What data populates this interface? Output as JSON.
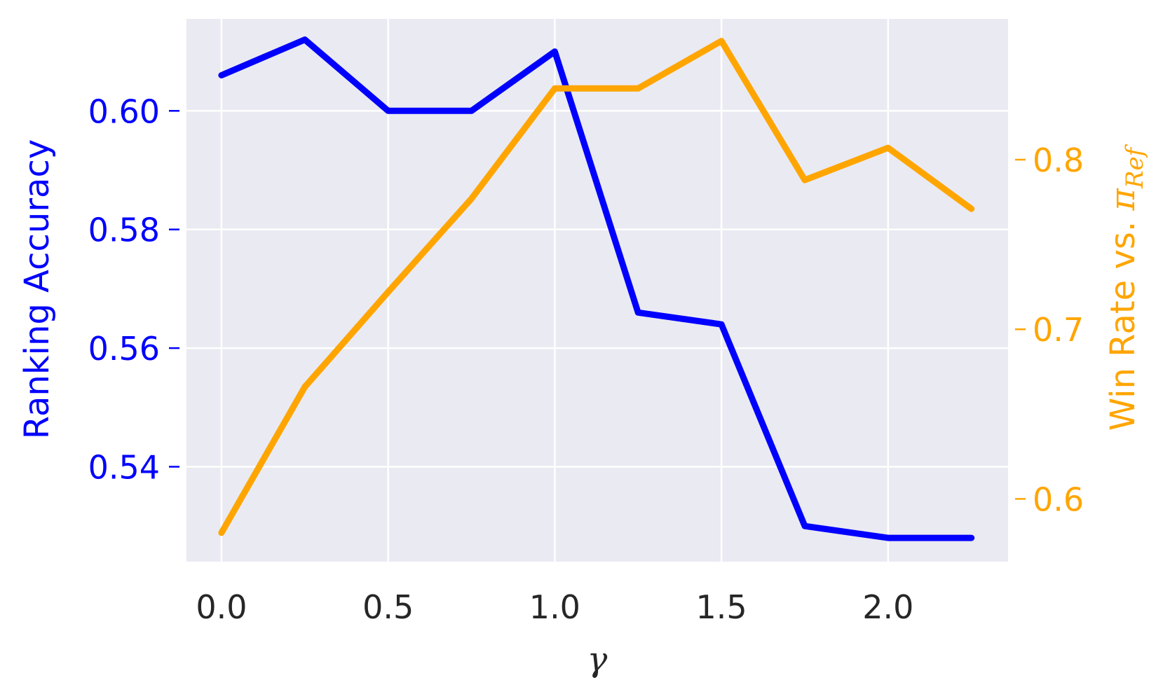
{
  "chart_data": {
    "type": "line",
    "title": "",
    "x": [
      0.0,
      0.25,
      0.5,
      0.75,
      1.0,
      1.25,
      1.5,
      1.75,
      2.0,
      2.25
    ],
    "xlabel": "γ",
    "xlim": [
      -0.105,
      2.36
    ],
    "xticks": [
      0.0,
      0.5,
      1.0,
      1.5,
      2.0
    ],
    "xtick_labels": [
      "0.0",
      "0.5",
      "1.0",
      "1.5",
      "2.0"
    ],
    "ylabel_left": "Ranking Accuracy",
    "ylim_left": [
      0.524,
      0.6155
    ],
    "yticks_left": [
      0.54,
      0.56,
      0.58,
      0.6
    ],
    "ytick_labels_left": [
      "0.54",
      "0.56",
      "0.58",
      "0.60"
    ],
    "ylabel_right": {
      "main": "Win Rate vs. ",
      "symbol": "π",
      "subscript": "Ref"
    },
    "ylim_right": [
      0.563,
      0.883
    ],
    "yticks_right": [
      0.6,
      0.7,
      0.8
    ],
    "ytick_labels_right": [
      "0.6",
      "0.7",
      "0.8"
    ],
    "grid": true,
    "background": "#eaeaf2",
    "series": [
      {
        "axis": "left",
        "color": "#0000ff",
        "values": [
          0.606,
          0.612,
          0.6,
          0.6,
          0.61,
          0.566,
          0.564,
          0.53,
          0.528,
          0.528
        ]
      },
      {
        "axis": "right",
        "color": "#ffa500",
        "values": [
          0.58,
          0.666,
          0.722,
          0.777,
          0.842,
          0.842,
          0.87,
          0.788,
          0.807,
          0.771
        ]
      }
    ]
  }
}
